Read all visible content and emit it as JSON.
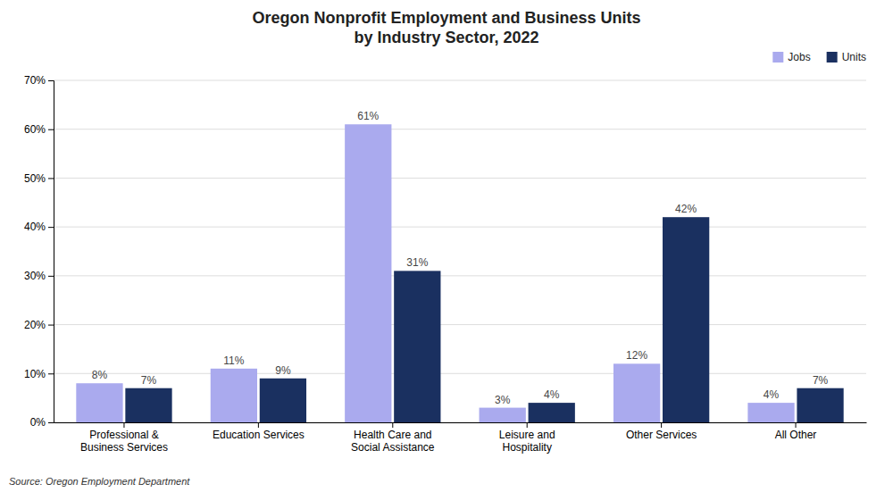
{
  "chart_data": {
    "type": "bar",
    "title": "Oregon Nonprofit Employment and Business Units\nby Industry Sector, 2022",
    "categories": [
      "Professional &\nBusiness Services",
      "Education Services",
      "Health Care and\nSocial Assistance",
      "Leisure and\nHospitality",
      "Other Services",
      "All Other"
    ],
    "series": [
      {
        "name": "Jobs",
        "color": "#aaaaee",
        "values": [
          8,
          11,
          61,
          3,
          12,
          4
        ],
        "value_labels": [
          "8%",
          "11%",
          "61%",
          "3%",
          "12%",
          "4%"
        ]
      },
      {
        "name": "Units",
        "color": "#1a3060",
        "values": [
          7,
          9,
          31,
          4,
          42,
          7
        ],
        "value_labels": [
          "7%",
          "9%",
          "31%",
          "4%",
          "42%",
          "7%"
        ]
      }
    ],
    "ylim": [
      0,
      70
    ],
    "yticks": [
      {
        "value": 0,
        "label": "0%"
      },
      {
        "value": 10,
        "label": "10%"
      },
      {
        "value": 20,
        "label": "20%"
      },
      {
        "value": 30,
        "label": "30%"
      },
      {
        "value": 40,
        "label": "40%"
      },
      {
        "value": 50,
        "label": "50%"
      },
      {
        "value": 60,
        "label": "60%"
      },
      {
        "value": 70,
        "label": "70%"
      }
    ],
    "grid": true,
    "legend": "upper right",
    "data_labels": true,
    "source": "Source: Oregon Employment Department"
  }
}
